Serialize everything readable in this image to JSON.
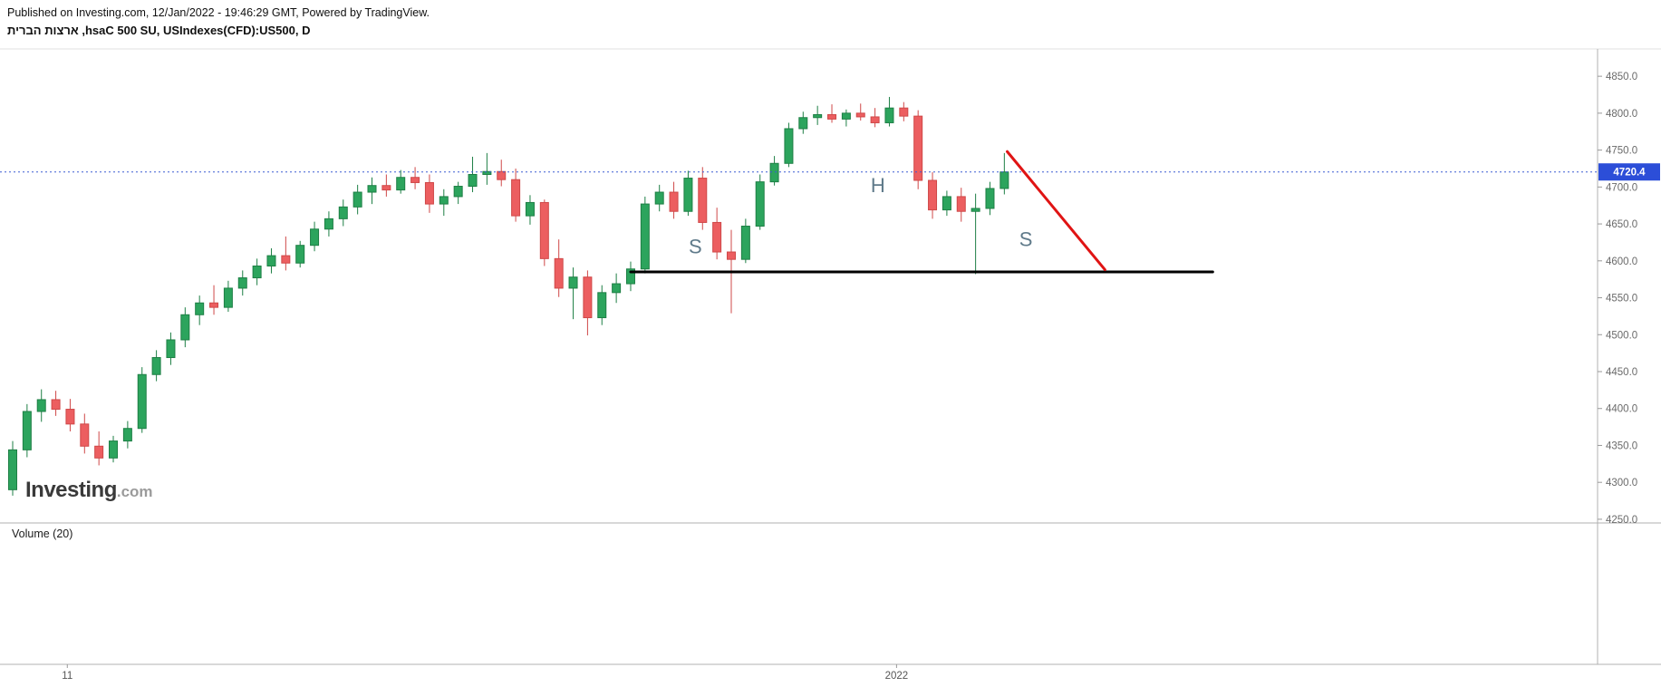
{
  "header": {
    "published_line": "Published on Investing.com, 12/Jan/2022 - 19:46:29 GMT, Powered by TradingView.",
    "instrument_line": "ארצות הברית ,hsaC 500 SU, USIndexes(CFD):US500, D"
  },
  "logo": {
    "main": "Investing",
    "suffix": ".com"
  },
  "panes": {
    "volume_label": "Volume (20)"
  },
  "price_axis": {
    "labels": [
      "4850.0",
      "4800.0",
      "4750.0",
      "4700.0",
      "4650.0",
      "4600.0",
      "4550.0",
      "4500.0",
      "4450.0",
      "4400.0",
      "4350.0",
      "4300.0",
      "4250.0"
    ],
    "current_price_label": "4720.4",
    "badge_color": "#2c4ed8",
    "text_color": "#6a6a6a"
  },
  "time_axis": {
    "labels": [
      {
        "text": "11",
        "index": 3.8
      },
      {
        "text": "2022",
        "index": 61.5
      }
    ]
  },
  "chart_data": {
    "type": "candlestick",
    "symbol": "USIndexes(CFD):US500",
    "interval": "D",
    "current_price": 4720.4,
    "y_range": [
      4245,
      4887
    ],
    "grid": "off",
    "up_color": "#2ca45d",
    "up_border": "#1e7f45",
    "down_color": "#ec5e60",
    "down_border": "#cf4848",
    "candles": [
      [
        4290,
        4356,
        4282,
        4344
      ],
      [
        4344,
        4406,
        4334,
        4396
      ],
      [
        4396,
        4426,
        4382,
        4412
      ],
      [
        4412,
        4424,
        4390,
        4399
      ],
      [
        4399,
        4413,
        4369,
        4379
      ],
      [
        4379,
        4393,
        4339,
        4349
      ],
      [
        4349,
        4369,
        4323,
        4333
      ],
      [
        4333,
        4363,
        4327,
        4356
      ],
      [
        4356,
        4383,
        4346,
        4373
      ],
      [
        4373,
        4456,
        4367,
        4446
      ],
      [
        4446,
        4479,
        4437,
        4469
      ],
      [
        4469,
        4503,
        4459,
        4493
      ],
      [
        4493,
        4537,
        4483,
        4527
      ],
      [
        4527,
        4553,
        4513,
        4543
      ],
      [
        4543,
        4567,
        4527,
        4537
      ],
      [
        4537,
        4573,
        4531,
        4563
      ],
      [
        4563,
        4587,
        4553,
        4577
      ],
      [
        4577,
        4603,
        4567,
        4593
      ],
      [
        4593,
        4617,
        4583,
        4607
      ],
      [
        4607,
        4633,
        4587,
        4597
      ],
      [
        4597,
        4627,
        4591,
        4621
      ],
      [
        4621,
        4653,
        4613,
        4643
      ],
      [
        4643,
        4667,
        4633,
        4657
      ],
      [
        4657,
        4683,
        4647,
        4673
      ],
      [
        4673,
        4703,
        4663,
        4693
      ],
      [
        4693,
        4713,
        4677,
        4702
      ],
      [
        4702,
        4717,
        4687,
        4696
      ],
      [
        4696,
        4723,
        4691,
        4713
      ],
      [
        4713,
        4727,
        4697,
        4706
      ],
      [
        4706,
        4717,
        4665,
        4677
      ],
      [
        4677,
        4697,
        4661,
        4687
      ],
      [
        4687,
        4707,
        4677,
        4701
      ],
      [
        4701,
        4741,
        4693,
        4717
      ],
      [
        4717,
        4746,
        4703,
        4721
      ],
      [
        4721,
        4737,
        4701,
        4710
      ],
      [
        4710,
        4725,
        4653,
        4661
      ],
      [
        4661,
        4689,
        4649,
        4679
      ],
      [
        4679,
        4683,
        4593,
        4603
      ],
      [
        4603,
        4629,
        4551,
        4563
      ],
      [
        4563,
        4591,
        4521,
        4578
      ],
      [
        4578,
        4587,
        4499,
        4523
      ],
      [
        4523,
        4567,
        4513,
        4557
      ],
      [
        4557,
        4583,
        4543,
        4569
      ],
      [
        4569,
        4599,
        4559,
        4589
      ],
      [
        4589,
        4687,
        4583,
        4677
      ],
      [
        4677,
        4703,
        4667,
        4693
      ],
      [
        4693,
        4707,
        4657,
        4667
      ],
      [
        4667,
        4722,
        4661,
        4712
      ],
      [
        4712,
        4727,
        4642,
        4652
      ],
      [
        4652,
        4672,
        4602,
        4612
      ],
      [
        4612,
        4642,
        4529,
        4602
      ],
      [
        4602,
        4657,
        4597,
        4647
      ],
      [
        4647,
        4717,
        4642,
        4707
      ],
      [
        4707,
        4742,
        4702,
        4732
      ],
      [
        4732,
        4787,
        4727,
        4779
      ],
      [
        4779,
        4802,
        4772,
        4794
      ],
      [
        4794,
        4810,
        4784,
        4798
      ],
      [
        4798,
        4812,
        4787,
        4792
      ],
      [
        4792,
        4805,
        4782,
        4800
      ],
      [
        4800,
        4813,
        4790,
        4795
      ],
      [
        4795,
        4807,
        4781,
        4787
      ],
      [
        4787,
        4822,
        4782,
        4807
      ],
      [
        4807,
        4815,
        4789,
        4796
      ],
      [
        4796,
        4804,
        4697,
        4709
      ],
      [
        4709,
        4720,
        4657,
        4669
      ],
      [
        4669,
        4695,
        4661,
        4687
      ],
      [
        4687,
        4699,
        4653,
        4667
      ],
      [
        4667,
        4691,
        4582,
        4671
      ],
      [
        4671,
        4707,
        4662,
        4698
      ],
      [
        4698,
        4746,
        4690,
        4720.4
      ]
    ],
    "price_line": {
      "price": 4720.4,
      "color": "#3b5bd2",
      "style": "dotted"
    },
    "neckline": {
      "from_index": 43,
      "to_index": 83.5,
      "price": 4585,
      "color": "#000000",
      "width": 3
    },
    "projection_line": {
      "from_index": 69.2,
      "from_price": 4748,
      "to_index": 76,
      "to_price": 4588,
      "color": "#e01414",
      "width": 3
    },
    "pattern_labels": [
      {
        "text": "S",
        "index": 47.5,
        "price": 4620
      },
      {
        "text": "H",
        "index": 60.2,
        "price": 4703
      },
      {
        "text": "S",
        "index": 70.5,
        "price": 4630
      }
    ],
    "label_color": "#5f7a8a"
  }
}
